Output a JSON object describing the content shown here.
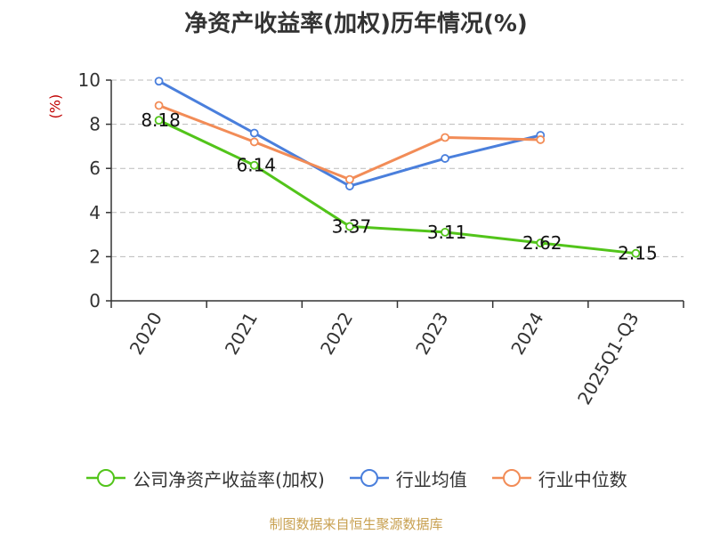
{
  "title": "净资产收益率(加权)历年情况(%)",
  "unit_label": "(%)",
  "source": "制图数据来自恒生聚源数据库",
  "chart_data": {
    "type": "line",
    "title": "净资产收益率(加权)历年情况(%)",
    "ylabel": "(%)",
    "xlabel": "",
    "categories": [
      "2020",
      "2021",
      "2022",
      "2023",
      "2024",
      "2025Q1-Q3"
    ],
    "ylim": [
      0,
      10
    ],
    "yticks": [
      0,
      2,
      4,
      6,
      8,
      10
    ],
    "grid": true,
    "legend_position": "bottom",
    "series": [
      {
        "name": "公司净资产收益率(加权)",
        "color": "#52c41a",
        "values": [
          8.18,
          6.14,
          3.37,
          3.11,
          2.62,
          2.15
        ],
        "data_labels": [
          "8.18",
          "6.14",
          "3.37",
          "3.11",
          "2.62",
          "2.15"
        ]
      },
      {
        "name": "行业均值",
        "color": "#4a7fdc",
        "values": [
          9.95,
          7.6,
          5.2,
          6.45,
          7.5,
          null
        ]
      },
      {
        "name": "行业中位数",
        "color": "#f28c57",
        "values": [
          8.85,
          7.2,
          5.5,
          7.4,
          7.3,
          null
        ]
      }
    ]
  }
}
